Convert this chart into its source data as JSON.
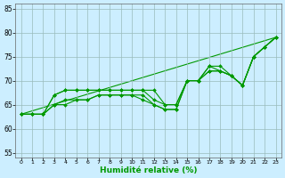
{
  "xlabel": "Humidité relative (%)",
  "xlim": [
    -0.5,
    23.5
  ],
  "ylim": [
    54,
    86
  ],
  "yticks": [
    55,
    60,
    65,
    70,
    75,
    80,
    85
  ],
  "xticks": [
    0,
    1,
    2,
    3,
    4,
    5,
    6,
    7,
    8,
    9,
    10,
    11,
    12,
    13,
    14,
    15,
    16,
    17,
    18,
    19,
    20,
    21,
    22,
    23
  ],
  "bg_color": "#cceeff",
  "grid_color": "#99bbbb",
  "line_color": "#009900",
  "lines": [
    [
      63,
      63,
      63,
      67,
      68,
      68,
      68,
      68,
      68,
      68,
      68,
      68,
      66,
      65,
      65,
      70,
      70,
      72,
      72,
      71,
      69,
      75,
      77,
      79
    ],
    [
      63,
      63,
      63,
      67,
      68,
      68,
      68,
      68,
      68,
      68,
      68,
      68,
      68,
      65,
      65,
      70,
      70,
      73,
      73,
      71,
      69,
      75,
      77,
      79
    ],
    [
      63,
      63,
      63,
      65,
      66,
      66,
      66,
      67,
      67,
      67,
      67,
      67,
      65,
      64,
      64,
      70,
      70,
      73,
      72,
      71,
      69,
      75,
      77,
      79
    ],
    [
      63,
      63,
      63,
      65,
      65,
      66,
      66,
      67,
      67,
      67,
      67,
      66,
      65,
      64,
      64,
      70,
      70,
      72,
      72,
      71,
      69,
      75,
      77,
      79
    ]
  ],
  "straight_line_x": [
    0,
    23
  ],
  "straight_line_y": [
    63,
    79
  ]
}
